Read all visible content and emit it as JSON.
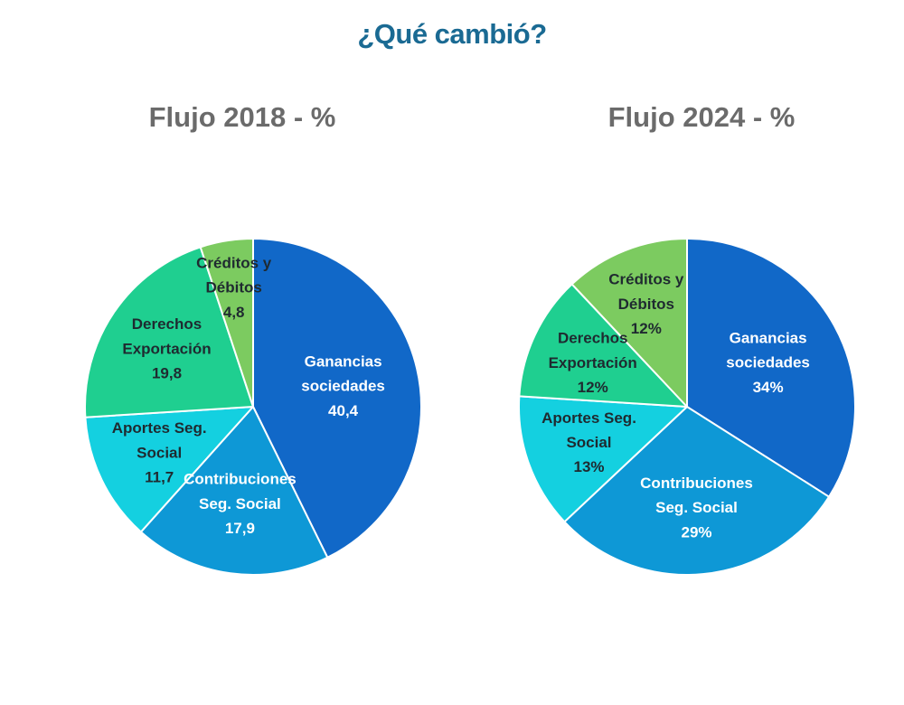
{
  "title": "¿Qué cambió?",
  "chart_data": [
    {
      "type": "pie",
      "title": "Flujo 2018 - %",
      "slices": [
        {
          "label_lines": [
            "Ganancias",
            "sociedades"
          ],
          "value": 40.4,
          "value_text": "40,4",
          "color": "#1168c8",
          "text_color": "#ffffff"
        },
        {
          "label_lines": [
            "Contribuciones",
            "Seg. Social"
          ],
          "value": 17.9,
          "value_text": "17,9",
          "color": "#0e98d6",
          "text_color": "#ffffff"
        },
        {
          "label_lines": [
            "Aportes Seg.",
            "Social"
          ],
          "value": 11.7,
          "value_text": "11,7",
          "color": "#14d0e0",
          "text_color": "#1f2a30"
        },
        {
          "label_lines": [
            "Derechos",
            "Exportación"
          ],
          "value": 19.8,
          "value_text": "19,8",
          "color": "#1fcf90",
          "text_color": "#1f2a30"
        },
        {
          "label_lines": [
            "Créditos y",
            "Débitos"
          ],
          "value": 4.8,
          "value_text": "4,8",
          "color": "#7ccb60",
          "text_color": "#1f2a30"
        }
      ]
    },
    {
      "type": "pie",
      "title": "Flujo 2024 - %",
      "slices": [
        {
          "label_lines": [
            "Ganancias",
            "sociedades"
          ],
          "value": 34,
          "value_text": "34%",
          "color": "#1168c8",
          "text_color": "#ffffff"
        },
        {
          "label_lines": [
            "Contribuciones",
            "Seg. Social"
          ],
          "value": 29,
          "value_text": "29%",
          "color": "#0e98d6",
          "text_color": "#ffffff"
        },
        {
          "label_lines": [
            "Aportes Seg.",
            "Social"
          ],
          "value": 13,
          "value_text": "13%",
          "color": "#14d0e0",
          "text_color": "#1f2a30"
        },
        {
          "label_lines": [
            "Derechos",
            "Exportación"
          ],
          "value": 12,
          "value_text": "12%",
          "color": "#1fcf90",
          "text_color": "#1f2a30"
        },
        {
          "label_lines": [
            "Créditos y",
            "Débitos"
          ],
          "value": 12,
          "value_text": "12%",
          "color": "#7ccb60",
          "text_color": "#1f2a30"
        }
      ]
    }
  ]
}
